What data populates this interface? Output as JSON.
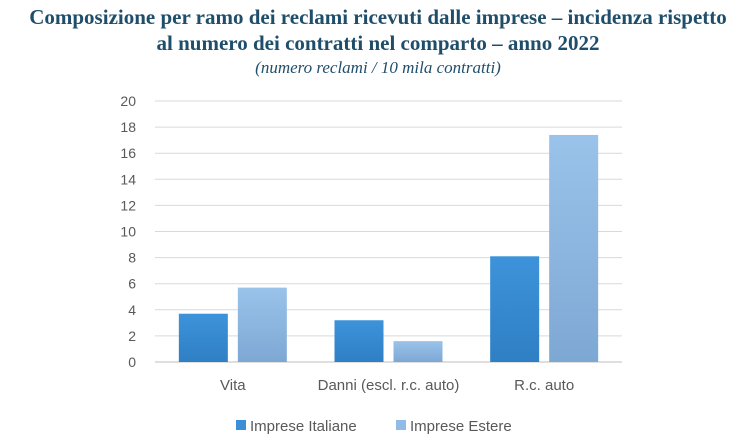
{
  "chart_data": {
    "type": "bar",
    "title_lines": [
      "Composizione per ramo dei reclami ricevuti dalle imprese – incidenza rispetto",
      "al numero dei contratti nel comparto – anno 2022"
    ],
    "subtitle": "(numero reclami / 10 mila contratti)",
    "categories": [
      "Vita",
      "Danni (escl. r.c. auto)",
      "R.c. auto"
    ],
    "series": [
      {
        "name": "Imprese Italiane",
        "values": [
          3.7,
          3.2,
          8.1
        ],
        "color": "#3a8fd6"
      },
      {
        "name": "Imprese Estere",
        "values": [
          5.7,
          1.6,
          17.4
        ],
        "color": "#8fbbe6"
      }
    ],
    "ylim": [
      0,
      20
    ],
    "yticks": [
      0,
      2,
      4,
      6,
      8,
      10,
      12,
      14,
      16,
      18,
      20
    ],
    "grid": true,
    "legend_position": "bottom"
  }
}
